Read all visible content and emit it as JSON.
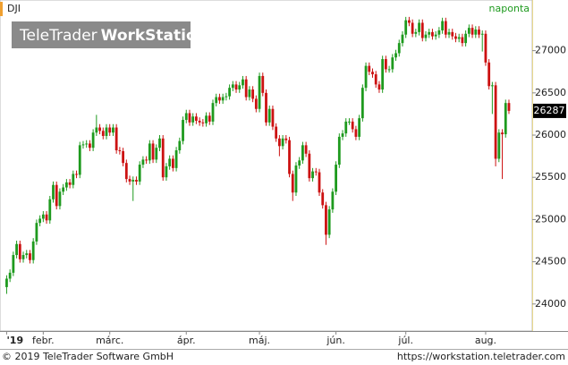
{
  "chart_data": {
    "type": "candlestick",
    "title": "DJI",
    "subtitle": "naponta",
    "logo": {
      "light": "TeleTrader",
      "bold": "WorkStation"
    },
    "footer": {
      "left": "© 2019 TeleTrader Software GmbH",
      "right": "https://workstation.teletrader.com"
    },
    "up_color": "#1e9a1e",
    "down_color": "#cc1111",
    "ylim": [
      23680,
      27600
    ],
    "yticks": [
      24000,
      24500,
      25000,
      25500,
      26000,
      26500,
      27000
    ],
    "xlim": [
      -2,
      158
    ],
    "xticks": [
      {
        "value": 0,
        "label": "'19"
      },
      {
        "value": 11,
        "label": "febr."
      },
      {
        "value": 31,
        "label": "márc."
      },
      {
        "value": 54,
        "label": "ápr."
      },
      {
        "value": 76,
        "label": "máj."
      },
      {
        "value": 99,
        "label": "jún."
      },
      {
        "value": 120,
        "label": "júl."
      },
      {
        "value": 144,
        "label": "aug."
      }
    ],
    "candles": [
      [
        24200,
        24340,
        24120,
        24300
      ],
      [
        24300,
        24410,
        24260,
        24370
      ],
      [
        24370,
        24620,
        24330,
        24580
      ],
      [
        24580,
        24750,
        24540,
        24710
      ],
      [
        24710,
        24750,
        24490,
        24530
      ],
      [
        24530,
        24620,
        24490,
        24580
      ],
      [
        24580,
        24640,
        24540,
        24600
      ],
      [
        24600,
        24640,
        24480,
        24520
      ],
      [
        24520,
        24780,
        24480,
        24740
      ],
      [
        24740,
        25000,
        24700,
        24960
      ],
      [
        24960,
        25050,
        24920,
        25010
      ],
      [
        25010,
        25100,
        24970,
        25060
      ],
      [
        25060,
        25100,
        24950,
        24990
      ],
      [
        24990,
        25280,
        24950,
        25240
      ],
      [
        25240,
        25450,
        25200,
        25410
      ],
      [
        25410,
        25450,
        25120,
        25160
      ],
      [
        25160,
        25370,
        25120,
        25330
      ],
      [
        25330,
        25420,
        25290,
        25380
      ],
      [
        25380,
        25480,
        25340,
        25440
      ],
      [
        25440,
        25480,
        25370,
        25410
      ],
      [
        25410,
        25580,
        25370,
        25540
      ],
      [
        25540,
        25580,
        25490,
        25530
      ],
      [
        25530,
        25920,
        25490,
        25880
      ],
      [
        25880,
        25930,
        25840,
        25890
      ],
      [
        25890,
        25940,
        25850,
        25900
      ],
      [
        25900,
        25940,
        25810,
        25850
      ],
      [
        25850,
        26070,
        25810,
        26030
      ],
      [
        26030,
        26240,
        25990,
        26090
      ],
      [
        26090,
        26130,
        26010,
        26050
      ],
      [
        26050,
        26090,
        25950,
        25990
      ],
      [
        25990,
        26130,
        25950,
        26090
      ],
      [
        26090,
        26130,
        25990,
        26030
      ],
      [
        26030,
        26130,
        25990,
        26090
      ],
      [
        26090,
        26130,
        25780,
        25820
      ],
      [
        25820,
        25860,
        25770,
        25810
      ],
      [
        25810,
        25850,
        25630,
        25670
      ],
      [
        25670,
        25710,
        25440,
        25480
      ],
      [
        25480,
        25520,
        25410,
        25450
      ],
      [
        25450,
        25510,
        25220,
        25470
      ],
      [
        25470,
        25510,
        25410,
        25450
      ],
      [
        25450,
        25690,
        25410,
        25650
      ],
      [
        25650,
        25750,
        25610,
        25710
      ],
      [
        25710,
        25750,
        25660,
        25700
      ],
      [
        25700,
        25940,
        25660,
        25900
      ],
      [
        25900,
        25940,
        25670,
        25710
      ],
      [
        25710,
        25890,
        25670,
        25850
      ],
      [
        25850,
        26000,
        25810,
        25960
      ],
      [
        25960,
        26000,
        25460,
        25500
      ],
      [
        25500,
        25670,
        25460,
        25630
      ],
      [
        25630,
        25760,
        25590,
        25720
      ],
      [
        25720,
        25760,
        25570,
        25610
      ],
      [
        25610,
        25860,
        25570,
        25820
      ],
      [
        25820,
        25970,
        25780,
        25930
      ],
      [
        25930,
        26220,
        25890,
        26180
      ],
      [
        26180,
        26300,
        26140,
        26260
      ],
      [
        26260,
        26300,
        26110,
        26150
      ],
      [
        26150,
        26260,
        26110,
        26220
      ],
      [
        26220,
        26260,
        26130,
        26170
      ],
      [
        26170,
        26210,
        26110,
        26150
      ],
      [
        26150,
        26190,
        26100,
        26140
      ],
      [
        26140,
        26270,
        26100,
        26230
      ],
      [
        26230,
        26270,
        26120,
        26160
      ],
      [
        26160,
        26420,
        26120,
        26380
      ],
      [
        26380,
        26490,
        26340,
        26450
      ],
      [
        26450,
        26490,
        26370,
        26410
      ],
      [
        26410,
        26490,
        26370,
        26450
      ],
      [
        26450,
        26500,
        26410,
        26460
      ],
      [
        26460,
        26600,
        26420,
        26560
      ],
      [
        26560,
        26640,
        26520,
        26600
      ],
      [
        26600,
        26640,
        26500,
        26540
      ],
      [
        26540,
        26630,
        26500,
        26590
      ],
      [
        26590,
        26700,
        26550,
        26660
      ],
      [
        26660,
        26700,
        26410,
        26450
      ],
      [
        26450,
        26580,
        26410,
        26540
      ],
      [
        26540,
        26580,
        26390,
        26430
      ],
      [
        26430,
        26470,
        26270,
        26310
      ],
      [
        26310,
        26740,
        26270,
        26700
      ],
      [
        26700,
        26740,
        26460,
        26500
      ],
      [
        26500,
        26540,
        26110,
        26150
      ],
      [
        26150,
        26350,
        26110,
        26310
      ],
      [
        26310,
        26350,
        26060,
        26100
      ],
      [
        26100,
        26140,
        25920,
        25960
      ],
      [
        25960,
        26000,
        25750,
        25870
      ],
      [
        25870,
        26000,
        25830,
        25960
      ],
      [
        25960,
        26000,
        25900,
        25940
      ],
      [
        25940,
        25980,
        25500,
        25540
      ],
      [
        25540,
        25580,
        25220,
        25320
      ],
      [
        25320,
        25680,
        25280,
        25640
      ],
      [
        25640,
        25740,
        25600,
        25700
      ],
      [
        25700,
        25920,
        25660,
        25880
      ],
      [
        25880,
        25920,
        25740,
        25780
      ],
      [
        25780,
        25820,
        25450,
        25490
      ],
      [
        25490,
        25610,
        25450,
        25570
      ],
      [
        25570,
        25610,
        25520,
        25560
      ],
      [
        25560,
        25600,
        25280,
        25320
      ],
      [
        25320,
        25360,
        25130,
        25170
      ],
      [
        25170,
        25210,
        24700,
        24820
      ],
      [
        24820,
        25160,
        24780,
        25120
      ],
      [
        25120,
        25370,
        25080,
        25330
      ],
      [
        25330,
        25690,
        25290,
        25650
      ],
      [
        25650,
        26020,
        25610,
        25980
      ],
      [
        25980,
        26060,
        25940,
        26020
      ],
      [
        26020,
        26200,
        25980,
        26160
      ],
      [
        26160,
        26200,
        26120,
        26160
      ],
      [
        26160,
        26200,
        26030,
        26070
      ],
      [
        26070,
        26110,
        25940,
        25980
      ],
      [
        25980,
        26240,
        25940,
        26200
      ],
      [
        26200,
        26600,
        26160,
        26560
      ],
      [
        26560,
        26860,
        26520,
        26820
      ],
      [
        26820,
        26860,
        26710,
        26750
      ],
      [
        26750,
        26790,
        26680,
        26720
      ],
      [
        26720,
        26760,
        26560,
        26600
      ],
      [
        26600,
        26640,
        26500,
        26540
      ],
      [
        26540,
        26940,
        26500,
        26900
      ],
      [
        26900,
        26940,
        26740,
        26780
      ],
      [
        26780,
        26820,
        26740,
        26780
      ],
      [
        26780,
        26960,
        26740,
        26920
      ],
      [
        26920,
        27010,
        26880,
        26970
      ],
      [
        26970,
        27130,
        26930,
        27090
      ],
      [
        27090,
        27230,
        27050,
        27190
      ],
      [
        27190,
        27400,
        27150,
        27360
      ],
      [
        27360,
        27400,
        27290,
        27330
      ],
      [
        27330,
        27370,
        27160,
        27200
      ],
      [
        27200,
        27260,
        27160,
        27220
      ],
      [
        27220,
        27370,
        27180,
        27330
      ],
      [
        27330,
        27370,
        27110,
        27150
      ],
      [
        27150,
        27230,
        27110,
        27190
      ],
      [
        27190,
        27260,
        27150,
        27220
      ],
      [
        27220,
        27260,
        27130,
        27170
      ],
      [
        27170,
        27230,
        27130,
        27190
      ],
      [
        27190,
        27280,
        27150,
        27240
      ],
      [
        27240,
        27390,
        27200,
        27350
      ],
      [
        27350,
        27390,
        27150,
        27190
      ],
      [
        27190,
        27260,
        27150,
        27220
      ],
      [
        27220,
        27260,
        27130,
        27170
      ],
      [
        27170,
        27210,
        27100,
        27140
      ],
      [
        27140,
        27200,
        27100,
        27160
      ],
      [
        27160,
        27200,
        27050,
        27090
      ],
      [
        27090,
        27240,
        27050,
        27200
      ],
      [
        27200,
        27310,
        27160,
        27270
      ],
      [
        27270,
        27310,
        27150,
        27190
      ],
      [
        27190,
        27290,
        27150,
        27250
      ],
      [
        27250,
        27290,
        27150,
        27190
      ],
      [
        27190,
        27240,
        26990,
        27200
      ],
      [
        27200,
        27240,
        26820,
        26860
      ],
      [
        26860,
        26900,
        26540,
        26580
      ],
      [
        26580,
        26630,
        26250,
        26590
      ],
      [
        26590,
        26630,
        25630,
        25720
      ],
      [
        25720,
        26070,
        25680,
        26030
      ],
      [
        26030,
        26070,
        25480,
        26010
      ],
      [
        26010,
        26420,
        25970,
        26380
      ],
      [
        26380,
        26420,
        26250,
        26287
      ]
    ]
  }
}
